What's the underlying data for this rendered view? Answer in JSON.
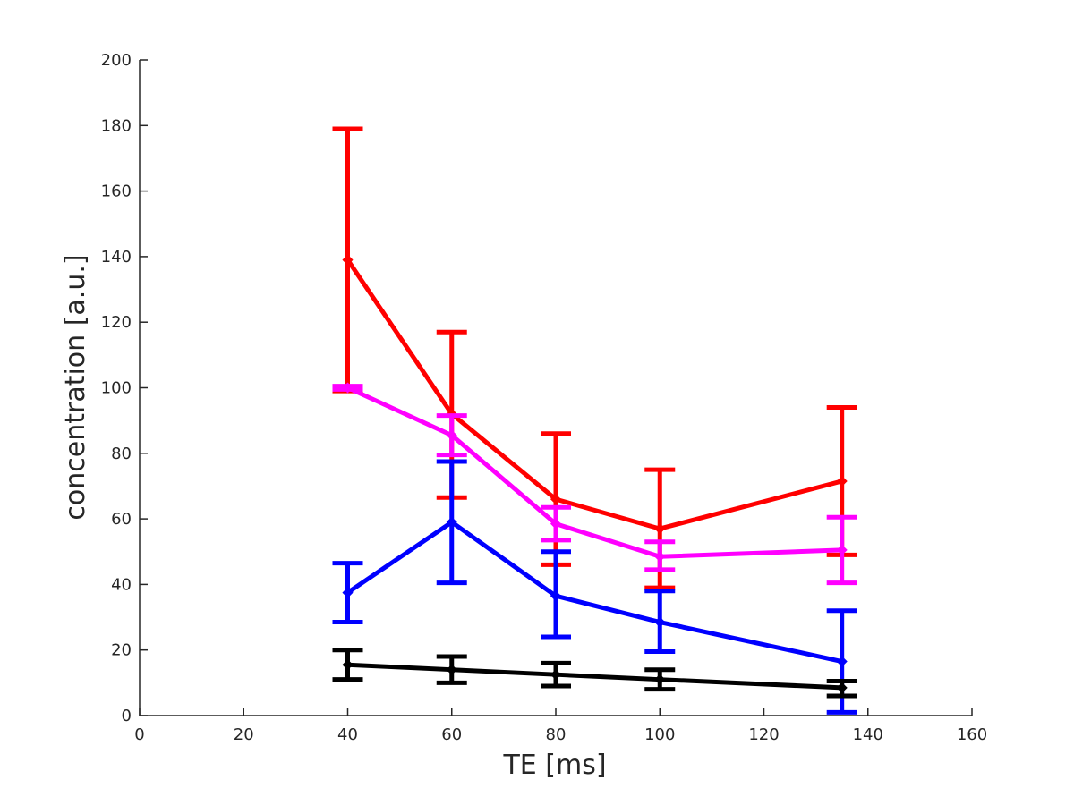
{
  "chart_data": {
    "type": "line",
    "title": "",
    "xlabel": "TE [ms]",
    "ylabel": "concentration [a.u.]",
    "xlim": [
      0,
      160
    ],
    "ylim": [
      0,
      200
    ],
    "xticks": [
      0,
      20,
      40,
      60,
      80,
      100,
      120,
      140,
      160
    ],
    "yticks": [
      0,
      20,
      40,
      60,
      80,
      100,
      120,
      140,
      160,
      180,
      200
    ],
    "grid": false,
    "x": [
      40,
      60,
      80,
      100,
      135
    ],
    "series": [
      {
        "name": "red",
        "color": "#ff0000",
        "values": [
          139,
          92,
          66,
          57,
          71.5
        ],
        "err_low": [
          99,
          66.5,
          46,
          39,
          49
        ],
        "err_high": [
          179,
          117,
          86,
          75,
          94
        ]
      },
      {
        "name": "magenta",
        "color": "#ff00ff",
        "values": [
          100,
          85.5,
          58.5,
          48.5,
          50.5
        ],
        "err_low": [
          99.5,
          79.5,
          53.5,
          44.5,
          40.5
        ],
        "err_high": [
          100.5,
          91.5,
          63.5,
          53,
          60.5
        ]
      },
      {
        "name": "blue",
        "color": "#0000ff",
        "values": [
          37.5,
          59,
          36.5,
          28.5,
          16.5
        ],
        "err_low": [
          28.5,
          40.5,
          24,
          19.5,
          1
        ],
        "err_high": [
          46.5,
          77.5,
          50,
          38,
          32
        ]
      },
      {
        "name": "black",
        "color": "#000000",
        "values": [
          15.5,
          14,
          12.5,
          11,
          8.5
        ],
        "err_low": [
          11,
          10,
          9,
          8,
          6
        ],
        "err_high": [
          20,
          18,
          16,
          14,
          10.5
        ]
      }
    ]
  }
}
